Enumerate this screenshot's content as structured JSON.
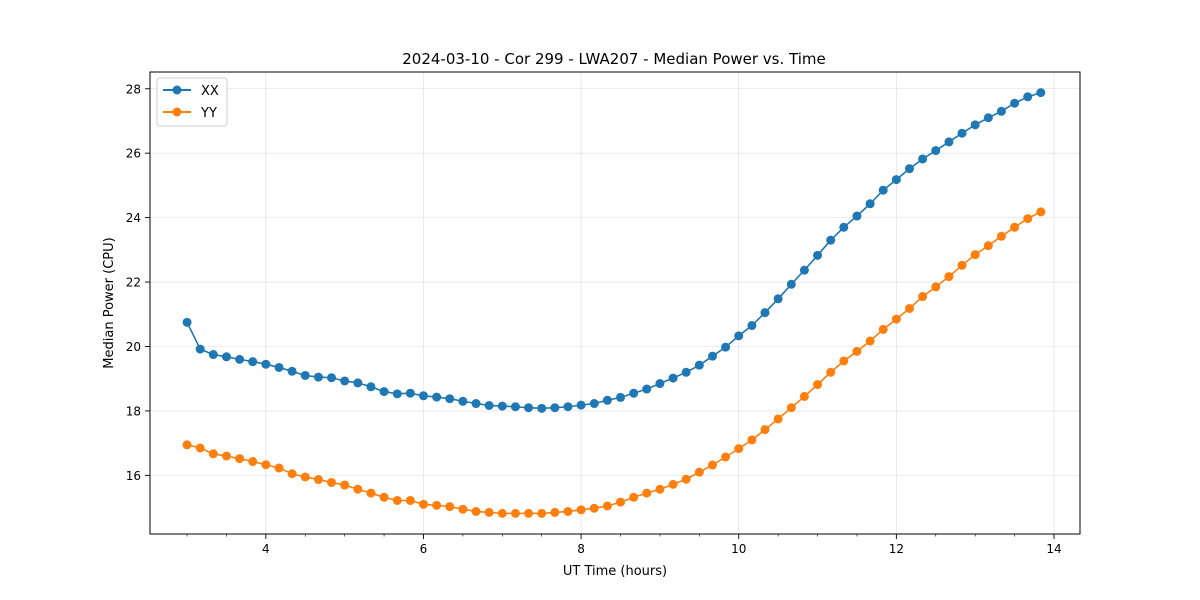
{
  "chart_data": {
    "type": "line",
    "title": "2024-03-10 - Cor 299 - LWA207 - Median Power vs. Time",
    "xlabel": "UT Time (hours)",
    "ylabel": "Median Power (CPU)",
    "xlim": [
      2.53,
      14.33
    ],
    "ylim": [
      14.18,
      28.52
    ],
    "xticks": [
      4,
      6,
      8,
      10,
      12,
      14
    ],
    "xtick_labels": [
      "4",
      "6",
      "8",
      "10",
      "12",
      "14"
    ],
    "yticks": [
      16,
      18,
      20,
      22,
      24,
      26,
      28
    ],
    "ytick_labels": [
      "16",
      "18",
      "20",
      "22",
      "24",
      "26",
      "28"
    ],
    "grid": true,
    "legend_position": "top-left",
    "x": [
      3.0,
      3.167,
      3.333,
      3.5,
      3.667,
      3.833,
      4.0,
      4.167,
      4.333,
      4.5,
      4.667,
      4.833,
      5.0,
      5.167,
      5.333,
      5.5,
      5.667,
      5.833,
      6.0,
      6.167,
      6.333,
      6.5,
      6.667,
      6.833,
      7.0,
      7.167,
      7.333,
      7.5,
      7.667,
      7.833,
      8.0,
      8.167,
      8.333,
      8.5,
      8.667,
      8.833,
      9.0,
      9.167,
      9.333,
      9.5,
      9.667,
      9.833,
      10.0,
      10.167,
      10.333,
      10.5,
      10.667,
      10.833,
      11.0,
      11.167,
      11.333,
      11.5,
      11.667,
      11.833,
      12.0,
      12.167,
      12.333,
      12.5,
      12.667,
      12.833,
      13.0,
      13.167,
      13.333,
      13.5,
      13.667,
      13.833
    ],
    "series": [
      {
        "name": "XX",
        "color": "#1f77b4",
        "values": [
          20.75,
          19.92,
          19.75,
          19.68,
          19.6,
          19.53,
          19.45,
          19.35,
          19.23,
          19.1,
          19.05,
          19.03,
          18.93,
          18.87,
          18.75,
          18.6,
          18.53,
          18.55,
          18.47,
          18.43,
          18.38,
          18.3,
          18.23,
          18.17,
          18.15,
          18.13,
          18.1,
          18.08,
          18.1,
          18.13,
          18.18,
          18.23,
          18.33,
          18.42,
          18.55,
          18.68,
          18.85,
          19.02,
          19.2,
          19.42,
          19.7,
          19.98,
          20.33,
          20.65,
          21.05,
          21.48,
          21.93,
          22.37,
          22.83,
          23.3,
          23.7,
          24.05,
          24.43,
          24.85,
          25.18,
          25.52,
          25.82,
          26.08,
          26.35,
          26.62,
          26.88,
          27.1,
          27.3,
          27.55,
          27.75,
          27.88
        ]
      },
      {
        "name": "YY",
        "color": "#ff7f0e",
        "values": [
          16.95,
          16.85,
          16.67,
          16.6,
          16.52,
          16.43,
          16.33,
          16.23,
          16.05,
          15.95,
          15.87,
          15.78,
          15.7,
          15.57,
          15.45,
          15.32,
          15.22,
          15.22,
          15.1,
          15.07,
          15.03,
          14.95,
          14.88,
          14.85,
          14.82,
          14.82,
          14.82,
          14.82,
          14.85,
          14.88,
          14.93,
          14.98,
          15.05,
          15.17,
          15.32,
          15.45,
          15.57,
          15.72,
          15.88,
          16.1,
          16.32,
          16.57,
          16.83,
          17.1,
          17.42,
          17.75,
          18.1,
          18.45,
          18.82,
          19.2,
          19.55,
          19.85,
          20.17,
          20.53,
          20.85,
          21.18,
          21.55,
          21.85,
          22.17,
          22.52,
          22.85,
          23.13,
          23.42,
          23.7,
          23.97,
          24.18
        ]
      }
    ]
  }
}
